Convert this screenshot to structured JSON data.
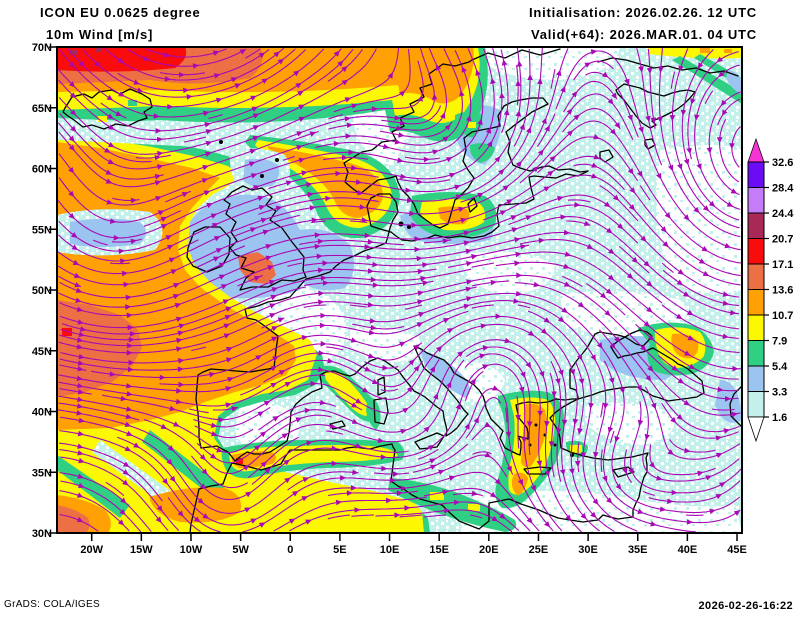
{
  "header": {
    "model_line": "ICON EU 0.0625 degree",
    "field_line": "10m Wind [m/s]",
    "init_line": "Initialisation: 2026.02.26. 12 UTC",
    "valid_line": "Valid(+64): 2026.MAR.01. 04 UTC"
  },
  "footer": {
    "credit": "GrADS: COLA/IGES",
    "timestamp": "2026-02-26-16:22"
  },
  "axes": {
    "lat_labels": [
      "70N",
      "65N",
      "60N",
      "55N",
      "50N",
      "45N",
      "40N",
      "35N",
      "30N"
    ],
    "lon_labels": [
      "20W",
      "15W",
      "10W",
      "5W",
      "0",
      "5E",
      "10E",
      "15E",
      "20E",
      "25E",
      "30E",
      "35E",
      "40E",
      "45E"
    ]
  },
  "colorbar": {
    "tick_labels_top_to_bottom": [
      "32.6",
      "28.4",
      "24.4",
      "20.7",
      "17.1",
      "13.6",
      "10.7",
      "7.9",
      "5.4",
      "3.3",
      "1.6"
    ],
    "segment_colors_top_to_bottom": [
      "#6a0cf4",
      "#c47cf8",
      "#a82858",
      "#f80c0c",
      "#ec7044",
      "#ffa004",
      "#fcf802",
      "#30d084",
      "#9cc4f0",
      "#c4f0ec"
    ],
    "above_max_color": "#f434d4",
    "below_min_color": "#ffffff"
  },
  "palette": {
    "red": "#f80c0c",
    "coral": "#ec7044",
    "orange": "#ffa004",
    "yellow": "#fcf802",
    "green": "#30d084",
    "blue": "#9cc4f0",
    "cyan": "#c4f0ec",
    "crimson": "#a82858",
    "violet": "#6a0cf4",
    "light_violet": "#c47cf8",
    "magenta": "#f434d4",
    "white": "#ffffff",
    "streamline": "#aa08b4",
    "coastline": "#000000",
    "text": "#000000"
  }
}
